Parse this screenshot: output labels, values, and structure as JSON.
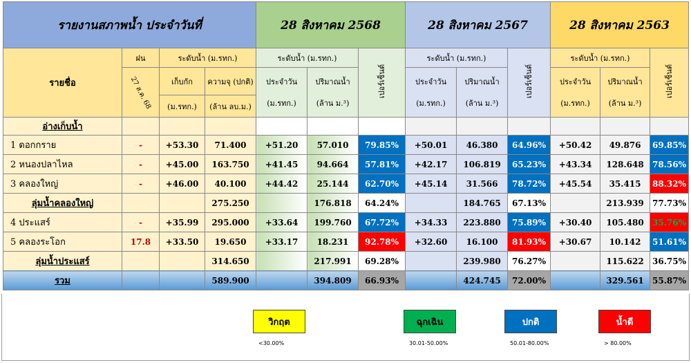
{
  "header": {
    "title": "รายงานสภาพน้ำ ประจำวันที่",
    "date1": "28 สิงหาคม 2568",
    "date2": "28 สิงหาคม 2567",
    "date3": "28 สิงหาคม 2563"
  },
  "columns": {
    "name": "รายชื่อ",
    "rain": "ฝน",
    "rain_date": "27 ส.ค. 68",
    "level": "ระดับน้ำ (ม.รทก.)",
    "storage_level": "เก็บกัก",
    "storage_unit": "(ม.รทก.)",
    "capacity": "ความจุ (ปกติ)",
    "capacity_unit": "(ล้าน ลบ.ม.)",
    "daily": "ประจำวัน",
    "daily_unit": "(ม.รทก.)",
    "volume": "ปริมาณน้ำ",
    "volume_unit": "(ล้าน ม.³)",
    "percent": "เปอร์เซ็นต์"
  },
  "section_label": "อ่างเก็บน้ำ",
  "rows": [
    {
      "type": "item",
      "name": "1  ดอกกราย",
      "rain": "-",
      "storage": "+53.30",
      "cap": "71.400",
      "d1": "+51.20",
      "v1": "57.010",
      "p1": "79.85%",
      "c1": "blue",
      "d2": "+50.01",
      "v2": "46.380",
      "p2": "64.96%",
      "c2": "blue",
      "d3": "+50.42",
      "v3": "49.876",
      "p3": "69.85%",
      "c3": "blue"
    },
    {
      "type": "item",
      "name": "2  หนองปลาไหล",
      "rain": "-",
      "storage": "+45.00",
      "cap": "163.750",
      "d1": "+41.45",
      "v1": "94.664",
      "p1": "57.81%",
      "c1": "blue",
      "d2": "+42.17",
      "v2": "106.819",
      "p2": "65.23%",
      "c2": "blue",
      "d3": "+43.34",
      "v3": "128.648",
      "p3": "78.56%",
      "c3": "blue"
    },
    {
      "type": "item",
      "name": "3  คลองใหญ่",
      "rain": "-",
      "storage": "+46.00",
      "cap": "40.100",
      "d1": "+44.42",
      "v1": "25.144",
      "p1": "62.70%",
      "c1": "blue",
      "d2": "+45.14",
      "v2": "31.566",
      "p2": "78.72%",
      "c2": "blue",
      "d3": "+45.54",
      "v3": "35.415",
      "p3": "88.32%",
      "c3": "red"
    },
    {
      "type": "group",
      "name": "ลุ่มน้ำคลองใหญ่",
      "rain": "",
      "storage": "",
      "cap": "275.250",
      "d1": "",
      "v1": "176.818",
      "p1": "64.24%",
      "c1": "plain",
      "d2": "",
      "v2": "184.765",
      "p2": "67.13%",
      "c2": "plain",
      "d3": "",
      "v3": "213.939",
      "p3": "77.73%",
      "c3": "plain"
    },
    {
      "type": "item",
      "name": "4  ประแสร์",
      "rain": "-",
      "storage": "+35.99",
      "cap": "295.000",
      "d1": "+33.64",
      "v1": "199.760",
      "p1": "67.72%",
      "c1": "blue",
      "d2": "+34.33",
      "v2": "223.880",
      "p2": "75.89%",
      "c2": "blue",
      "d3": "+30.40",
      "v3": "105.480",
      "p3": "35.76%",
      "c3": "greentext"
    },
    {
      "type": "item",
      "name": "5  คลองระโอก",
      "rain": "17.8",
      "storage": "+33.50",
      "cap": "19.650",
      "d1": "+33.17",
      "v1": "18.231",
      "p1": "92.78%",
      "c1": "red",
      "d2": "+32.60",
      "v2": "16.100",
      "p2": "81.93%",
      "c2": "red",
      "d3": "+30.67",
      "v3": "10.142",
      "p3": "51.61%",
      "c3": "blue"
    },
    {
      "type": "group",
      "name": "ลุ่มน้ำประแสร์",
      "rain": "",
      "storage": "",
      "cap": "314.650",
      "d1": "",
      "v1": "217.991",
      "p1": "69.28%",
      "c1": "plain",
      "d2": "",
      "v2": "239.980",
      "p2": "76.27%",
      "c2": "plain",
      "d3": "",
      "v3": "115.622",
      "p3": "36.75%",
      "c3": "plain"
    },
    {
      "type": "sum",
      "name": "รวม",
      "rain": "",
      "storage": "",
      "cap": "589.900",
      "d1": "",
      "v1": "394.809",
      "p1": "66.93%",
      "c1": "gray",
      "d2": "",
      "v2": "424.745",
      "p2": "72.00%",
      "c2": "gray",
      "d3": "",
      "v3": "329.561",
      "p3": "55.87%",
      "c3": "gray"
    }
  ],
  "legend": [
    {
      "label": "วิกฤต",
      "range": "<30.00%",
      "color": "#ffff00",
      "text": "#000000"
    },
    {
      "label": "ฉุกเฉิน",
      "range": "30.01-50.00%",
      "color": "#00b050",
      "text": "#000000"
    },
    {
      "label": "ปกติ",
      "range": "50.01-80.00%",
      "color": "#0070c0",
      "text": "#ffffff"
    },
    {
      "label": "น้ำดี",
      "range": "> 80.00%",
      "color": "#ff0000",
      "text": "#ffffff"
    }
  ]
}
